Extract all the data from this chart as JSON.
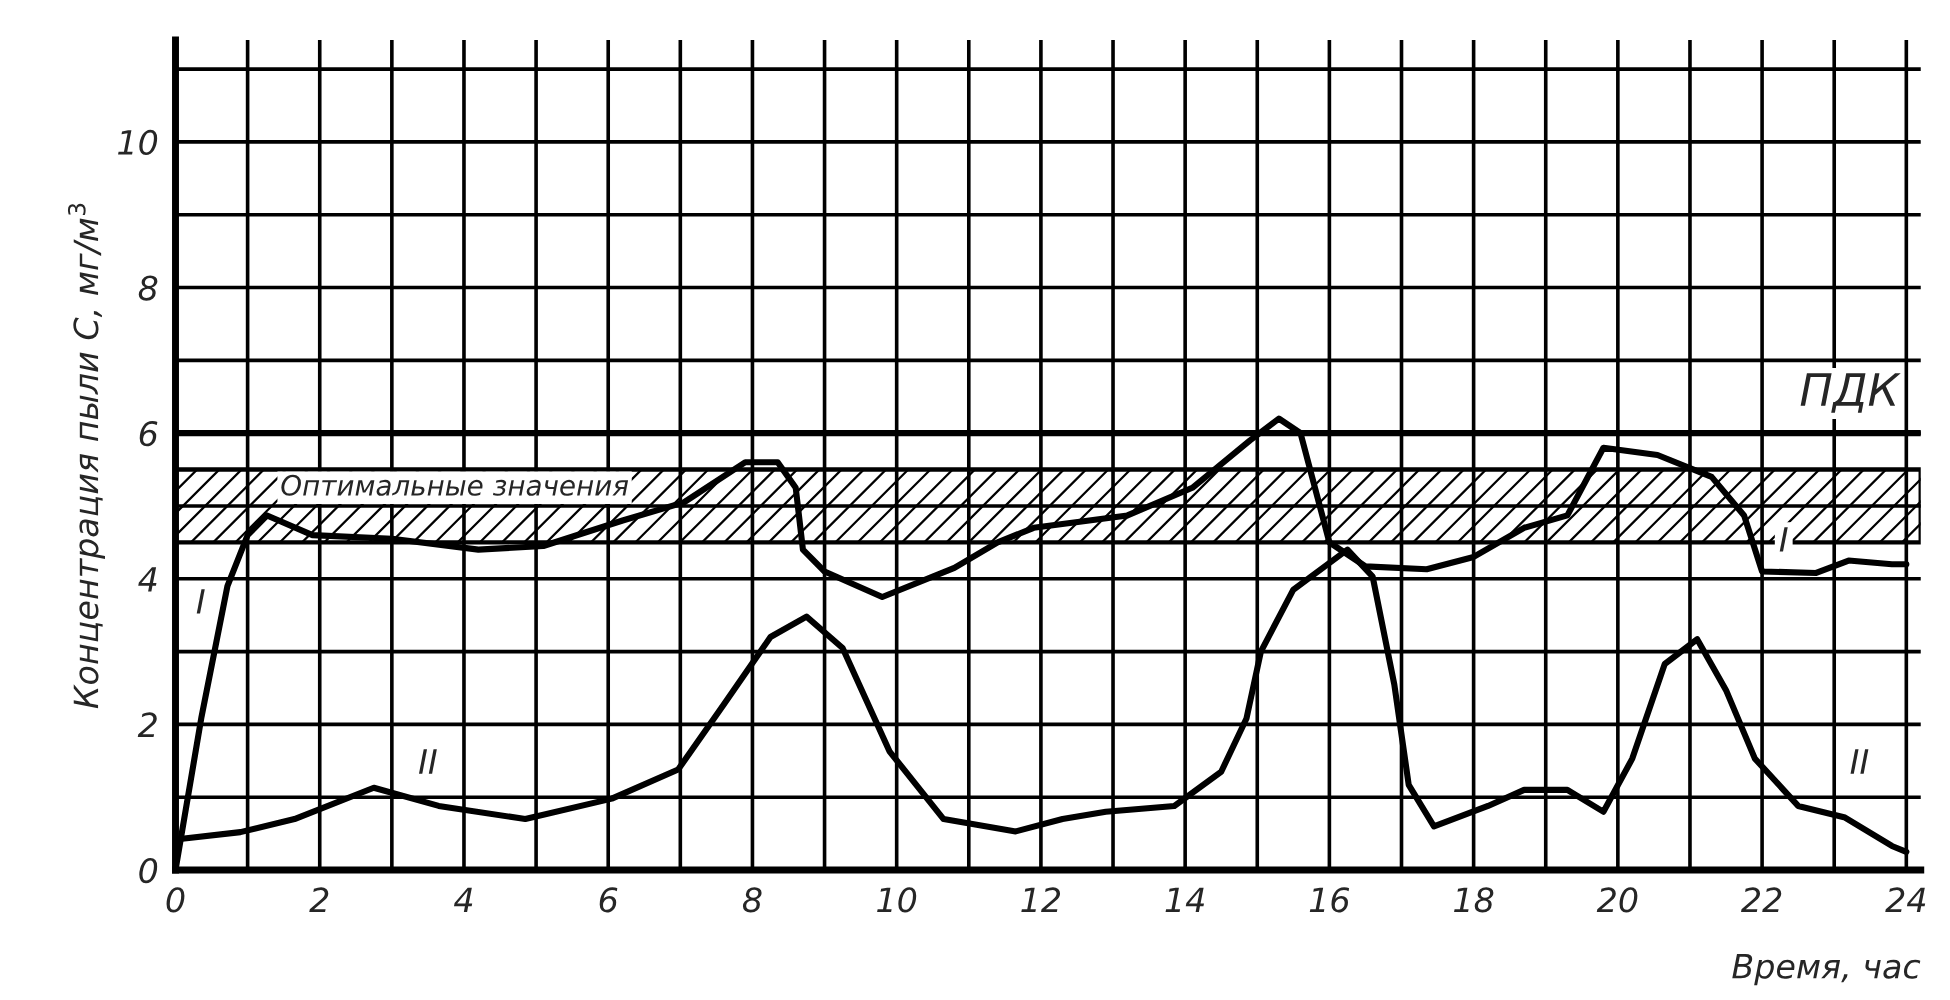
{
  "chart_data": {
    "type": "line",
    "xlabel": "Время, час",
    "ylabel": "Концентрация пыли С, мг/м$^{3}$",
    "xlim": [
      0,
      24.2
    ],
    "ylim": [
      0,
      11.4
    ],
    "xticks": [
      0,
      {
        "value": 1,
        "label": null
      },
      2,
      {
        "value": 3,
        "label": null
      },
      4,
      {
        "value": 5,
        "label": null
      },
      6,
      {
        "value": 7,
        "label": null
      },
      8,
      {
        "value": 9,
        "label": null
      },
      10,
      {
        "value": 11,
        "label": null
      },
      12,
      {
        "value": 13,
        "label": null
      },
      14,
      {
        "value": 15,
        "label": null
      },
      16,
      {
        "value": 17,
        "label": null
      },
      18,
      {
        "value": 19,
        "label": null
      },
      20,
      {
        "value": 21,
        "label": null
      },
      22,
      {
        "value": 23,
        "label": null
      },
      24
    ],
    "yticks": [
      0,
      {
        "value": 1,
        "label": null
      },
      2,
      {
        "value": 3,
        "label": null
      },
      4,
      {
        "value": 5,
        "label": null
      },
      6,
      {
        "value": 7,
        "label": null
      },
      8,
      {
        "value": 9,
        "label": null
      },
      10,
      {
        "value": 11,
        "label": null
      }
    ],
    "grid": true,
    "legend": false,
    "marker": "none",
    "line_style": "solid",
    "series": [
      {
        "color": "#000000",
        "x": [
          0,
          0.36,
          0.72,
          1.0,
          1.27,
          1.9,
          3.0,
          4.2,
          5.1,
          6.2,
          7.05,
          7.9,
          8.35,
          8.6,
          8.7,
          9.0,
          9.8,
          10.8,
          11.4,
          11.9,
          13.2,
          14.1,
          14.9,
          15.3,
          15.6,
          16.0,
          16.5,
          17.35,
          18.0,
          18.7,
          19.3,
          19.8,
          20.55,
          21.3,
          21.75,
          22.0,
          22.75,
          23.2,
          23.8,
          24
        ],
        "values": [
          0,
          2.1,
          3.9,
          4.6,
          4.87,
          4.6,
          4.55,
          4.4,
          4.45,
          4.8,
          5.05,
          5.6,
          5.6,
          5.25,
          4.4,
          4.1,
          3.75,
          4.15,
          4.5,
          4.7,
          4.87,
          5.25,
          5.9,
          6.2,
          6.0,
          4.5,
          4.17,
          4.13,
          4.3,
          4.7,
          4.87,
          5.8,
          5.7,
          5.4,
          4.87,
          4.1,
          4.08,
          4.25,
          4.2,
          4.2
        ]
      },
      {
        "color": "#000000",
        "x": [
          0,
          0.9,
          1.65,
          2.75,
          3.65,
          4.85,
          6.05,
          6.97,
          7.6,
          8.25,
          8.75,
          9.25,
          9.9,
          10.65,
          11.65,
          12.3,
          12.9,
          13.85,
          14.5,
          14.85,
          15.05,
          15.5,
          16.25,
          16.6,
          16.9,
          17.1,
          17.45,
          18.2,
          18.7,
          19.3,
          19.8,
          20.2,
          20.65,
          21.1,
          21.5,
          21.9,
          22.5,
          23.15,
          23.8,
          24
        ],
        "values": [
          0.42,
          0.52,
          0.7,
          1.13,
          0.88,
          0.7,
          0.98,
          1.38,
          2.27,
          3.2,
          3.48,
          3.05,
          1.63,
          0.7,
          0.53,
          0.7,
          0.8,
          0.88,
          1.35,
          2.08,
          3.0,
          3.85,
          4.4,
          4.03,
          2.55,
          1.17,
          0.6,
          0.88,
          1.1,
          1.1,
          0.8,
          1.53,
          2.83,
          3.17,
          2.47,
          1.53,
          0.88,
          0.72,
          0.33,
          0.25
        ]
      }
    ],
    "ref_lines": [
      {
        "axis": "y",
        "value": 6,
        "label": "ПДК",
        "color": "#000000"
      }
    ],
    "bands": [
      {
        "axis": "y",
        "from": 4.5,
        "to": 5.5,
        "color": "#000000",
        "label": "Оптимальные значения"
      }
    ],
    "annotations": [
      {
        "text": "I",
        "x": 0.35,
        "y": 3.65
      },
      {
        "text": "I",
        "x": 22.3,
        "y": 4.5
      },
      {
        "text": "II",
        "x": 3.5,
        "y": 1.45
      },
      {
        "text": "II",
        "x": 23.35,
        "y": 1.45
      }
    ]
  }
}
